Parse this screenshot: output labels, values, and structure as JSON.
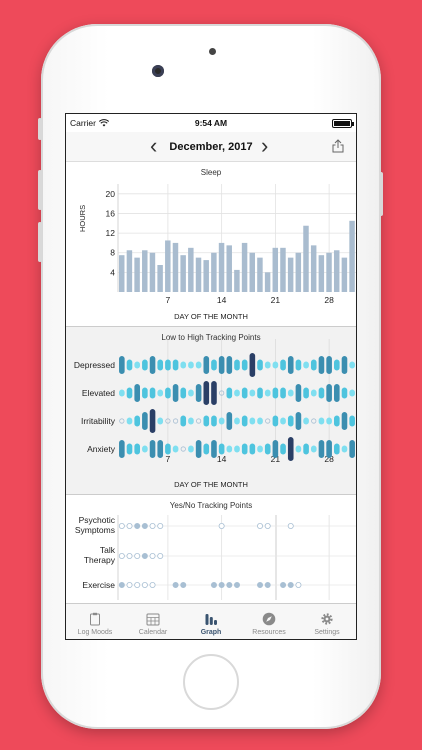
{
  "status": {
    "carrier": "Carrier",
    "time": "9:54 AM",
    "battery_percent": 100
  },
  "nav": {
    "title": "December, 2017",
    "prev": "‹",
    "next": "›"
  },
  "colors": {
    "background": "#ee4a5a",
    "sleep_bar": "#a9bccf",
    "low": "#7fdff0",
    "mid_low": "#4ec4de",
    "mid": "#3b8eb0",
    "high": "#2a3f66",
    "dot": "#a8bfd3"
  },
  "sleep": {
    "title": "Sleep",
    "ylabel": "HOURS",
    "xlabel": "DAY OF THE MONTH",
    "yticks": [
      "4",
      "8",
      "12",
      "16",
      "20"
    ],
    "xticks": [
      "7",
      "14",
      "21",
      "28"
    ]
  },
  "tracking": {
    "title": "Low to High Tracking Points",
    "xlabel": "DAY OF THE MONTH",
    "xticks": [
      "7",
      "14",
      "21",
      "28"
    ],
    "rows": [
      "Depressed",
      "Elevated",
      "Irritability",
      "Anxiety"
    ]
  },
  "yesno": {
    "title": "Yes/No Tracking Points",
    "rows": [
      {
        "line1": "Psychotic",
        "line2": "Symptoms"
      },
      {
        "line1": "Talk",
        "line2": "Therapy"
      },
      {
        "line1": "Exercise",
        "line2": ""
      }
    ]
  },
  "tabs": [
    {
      "label": "Log Moods",
      "icon": "clipboard-icon"
    },
    {
      "label": "Calendar",
      "icon": "calendar-icon"
    },
    {
      "label": "Graph",
      "icon": "bar-graph-icon",
      "active": true
    },
    {
      "label": "Resources",
      "icon": "compass-icon"
    },
    {
      "label": "Settings",
      "icon": "gear-icon"
    }
  ],
  "chart_data": [
    {
      "type": "bar",
      "title": "Sleep",
      "xlabel": "DAY OF THE MONTH",
      "ylabel": "HOURS",
      "x": [
        1,
        2,
        3,
        4,
        5,
        6,
        7,
        8,
        9,
        10,
        11,
        12,
        13,
        14,
        15,
        16,
        17,
        18,
        19,
        20,
        21,
        22,
        23,
        24,
        25,
        26,
        27,
        28,
        29,
        30,
        31
      ],
      "values": [
        7.5,
        8.5,
        7,
        8.5,
        8,
        5.5,
        10.5,
        10,
        7.5,
        9,
        7,
        6.5,
        8,
        10,
        9.5,
        4.5,
        10,
        8,
        7,
        4,
        9,
        9,
        7,
        8,
        13.5,
        9.5,
        7.5,
        8,
        8.5,
        7,
        14.5
      ],
      "ylim": [
        0,
        22
      ],
      "yticks": [
        4,
        8,
        12,
        16,
        20
      ],
      "xticks": [
        7,
        14,
        21,
        28
      ],
      "grid": true
    },
    {
      "type": "heatmap",
      "title": "Low to High Tracking Points",
      "xlabel": "DAY OF THE MONTH",
      "rows": [
        "Depressed",
        "Elevated",
        "Irritability",
        "Anxiety"
      ],
      "levels": "0 = none, 1 = low, 2 = mid-low, 3 = mid, 4 = high",
      "values": [
        [
          3,
          2,
          1,
          2,
          3,
          2,
          2,
          2,
          1,
          1,
          1,
          3,
          2,
          3,
          3,
          2,
          2,
          4,
          2,
          1,
          1,
          2,
          3,
          2,
          1,
          2,
          3,
          3,
          2,
          3,
          1
        ],
        [
          1,
          2,
          3,
          2,
          2,
          1,
          2,
          3,
          2,
          1,
          3,
          4,
          4,
          0,
          2,
          1,
          2,
          1,
          2,
          1,
          2,
          2,
          1,
          3,
          2,
          1,
          2,
          3,
          3,
          2,
          1
        ],
        [
          0,
          1,
          2,
          3,
          4,
          1,
          0,
          0,
          2,
          1,
          0,
          2,
          2,
          1,
          3,
          1,
          2,
          1,
          1,
          0,
          2,
          1,
          2,
          3,
          1,
          0,
          1,
          1,
          2,
          3,
          2
        ],
        [
          3,
          2,
          2,
          1,
          3,
          3,
          2,
          1,
          0,
          1,
          3,
          2,
          3,
          2,
          1,
          1,
          2,
          2,
          1,
          2,
          3,
          2,
          4,
          1,
          2,
          1,
          3,
          3,
          2,
          1,
          3
        ]
      ]
    },
    {
      "type": "scatter",
      "title": "Yes/No Tracking Points",
      "rows": [
        "Psychotic Symptoms",
        "Talk Therapy",
        "Exercise"
      ],
      "yes_days": [
        [
          3,
          4
        ],
        [
          4
        ],
        [
          1,
          8,
          9,
          13,
          14,
          15,
          16,
          19,
          20,
          22,
          23
        ]
      ],
      "recorded_days": [
        [
          1,
          2,
          3,
          4,
          5,
          6,
          14,
          19,
          20,
          23
        ],
        [
          1,
          2,
          3,
          4,
          5,
          6
        ],
        [
          1,
          2,
          3,
          4,
          5,
          8,
          9,
          13,
          14,
          15,
          16,
          19,
          20,
          22,
          23,
          24
        ]
      ]
    }
  ]
}
